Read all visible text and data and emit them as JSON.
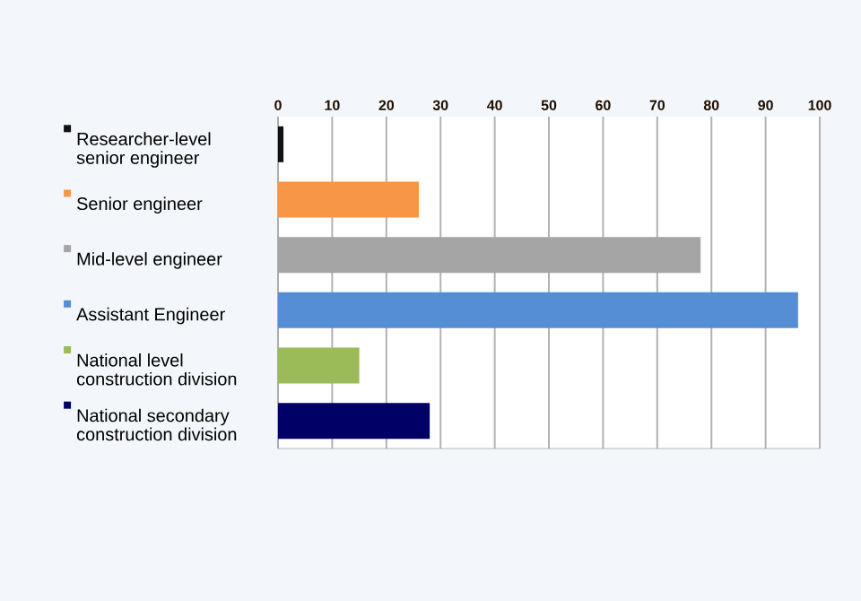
{
  "chart_data": {
    "type": "bar",
    "orientation": "horizontal",
    "categories": [
      "Researcher-level senior engineer",
      "Senior engineer",
      "Mid-level engineer",
      "Assistant Engineer",
      "National level construction division",
      "National secondary construction division"
    ],
    "values": [
      1,
      26,
      78,
      96,
      15,
      28
    ],
    "colors": [
      "#111111",
      "#f79646",
      "#a5a5a5",
      "#558ed5",
      "#9bbb59",
      "#000066"
    ],
    "xlim": [
      0,
      100
    ],
    "xticks": [
      0,
      10,
      20,
      30,
      40,
      50,
      60,
      70,
      80,
      90,
      100
    ],
    "grid": "x"
  }
}
